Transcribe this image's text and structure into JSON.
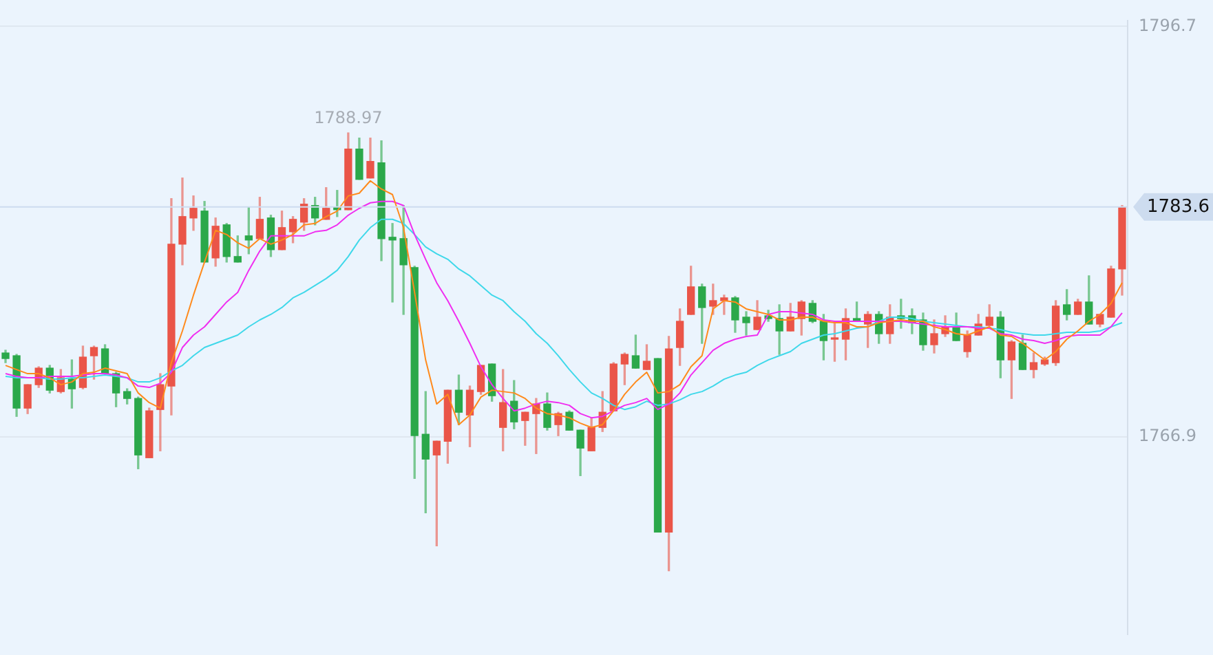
{
  "chart_data": {
    "type": "candlestick",
    "categories": [
      null,
      null,
      null,
      null,
      null,
      null,
      null,
      null,
      null,
      null,
      null,
      null,
      null,
      null,
      null,
      null,
      null,
      null,
      null,
      null,
      null,
      null,
      null,
      null,
      null,
      null,
      null,
      null,
      null,
      null,
      null,
      null,
      null,
      null,
      null,
      null,
      null,
      null,
      null,
      null,
      null,
      null,
      null,
      null,
      null,
      null,
      null,
      null,
      null,
      null,
      null,
      null,
      null,
      null,
      null,
      null,
      null,
      null,
      null,
      null,
      null,
      null,
      null,
      null,
      null,
      null,
      null,
      null,
      null,
      null,
      null,
      null,
      null,
      null,
      null,
      null,
      null,
      null,
      null,
      null,
      null,
      null,
      null,
      null,
      null,
      null,
      null,
      null,
      null,
      null,
      null,
      null,
      null,
      null,
      null,
      null,
      null,
      null,
      null,
      null,
      null,
      null
    ],
    "ohlc": [
      [
        1773.0,
        1773.2,
        1772.3,
        1772.6
      ],
      [
        1772.8,
        1772.9,
        1768.4,
        1769.0
      ],
      [
        1769.0,
        1770.7,
        1768.6,
        1770.7
      ],
      [
        1770.7,
        1772.0,
        1770.5,
        1771.9
      ],
      [
        1771.9,
        1772.1,
        1770.1,
        1770.3
      ],
      [
        1770.2,
        1771.8,
        1770.1,
        1771.2
      ],
      [
        1771.1,
        1772.5,
        1769.0,
        1770.4
      ],
      [
        1770.5,
        1773.5,
        1770.4,
        1772.7
      ],
      [
        1772.8,
        1773.5,
        1771.1,
        1773.4
      ],
      [
        1773.3,
        1773.6,
        1771.5,
        1771.5
      ],
      [
        1771.5,
        1771.6,
        1769.1,
        1770.1
      ],
      [
        1770.2,
        1770.4,
        1769.3,
        1769.7
      ],
      [
        1769.7,
        1769.8,
        1764.6,
        1765.6
      ],
      [
        1765.4,
        1769.0,
        1765.4,
        1768.8
      ],
      [
        1768.9,
        1771.5,
        1765.9,
        1770.7
      ],
      [
        1770.6,
        1784.2,
        1768.5,
        1780.9
      ],
      [
        1780.9,
        1785.7,
        1779.4,
        1782.9
      ],
      [
        1782.8,
        1784.4,
        1781.9,
        1783.5
      ],
      [
        1783.3,
        1784.0,
        1779.6,
        1779.6
      ],
      [
        1779.9,
        1782.8,
        1779.3,
        1782.2
      ],
      [
        1782.3,
        1782.4,
        1779.6,
        1780.0
      ],
      [
        1780.0,
        1781.5,
        1779.6,
        1779.6
      ],
      [
        1781.5,
        1783.6,
        1780.2,
        1781.2
      ],
      [
        1781.3,
        1784.3,
        1781.3,
        1782.7
      ],
      [
        1782.8,
        1783.0,
        1780.0,
        1780.5
      ],
      [
        1780.5,
        1783.3,
        1780.5,
        1782.1
      ],
      [
        1781.8,
        1782.9,
        1781.0,
        1782.7
      ],
      [
        1782.5,
        1784.2,
        1781.9,
        1783.8
      ],
      [
        1783.7,
        1784.3,
        1782.3,
        1782.8
      ],
      [
        1782.7,
        1785.0,
        1782.7,
        1783.5
      ],
      [
        1783.6,
        1784.8,
        1782.9,
        1783.4
      ],
      [
        1783.4,
        1788.97,
        1783.4,
        1787.8
      ],
      [
        1787.8,
        1788.6,
        1785.6,
        1785.6
      ],
      [
        1785.7,
        1788.6,
        1785.7,
        1786.9
      ],
      [
        1786.8,
        1788.4,
        1779.7,
        1781.3
      ],
      [
        1781.4,
        1782.4,
        1776.7,
        1781.2
      ],
      [
        1781.3,
        1783.7,
        1775.8,
        1779.4
      ],
      [
        1779.2,
        1779.3,
        1763.9,
        1767.0
      ],
      [
        1767.1,
        1770.2,
        1761.4,
        1765.3
      ],
      [
        1765.6,
        1766.6,
        1759.0,
        1766.6
      ],
      [
        1766.6,
        1770.3,
        1765.0,
        1770.3
      ],
      [
        1770.3,
        1771.4,
        1767.8,
        1768.7
      ],
      [
        1768.5,
        1770.6,
        1766.2,
        1770.3
      ],
      [
        1770.2,
        1772.1,
        1770.0,
        1772.1
      ],
      [
        1772.2,
        1772.2,
        1769.5,
        1769.9
      ],
      [
        1767.6,
        1771.8,
        1765.9,
        1769.4
      ],
      [
        1769.5,
        1771.0,
        1767.5,
        1768.0
      ],
      [
        1768.1,
        1768.7,
        1766.3,
        1768.7
      ],
      [
        1768.6,
        1769.7,
        1765.7,
        1769.3
      ],
      [
        1769.3,
        1770.1,
        1767.4,
        1767.6
      ],
      [
        1767.8,
        1768.7,
        1767.0,
        1768.6
      ],
      [
        1768.7,
        1768.8,
        1767.4,
        1767.4
      ],
      [
        1767.4,
        1767.4,
        1764.1,
        1766.1
      ],
      [
        1765.9,
        1768.3,
        1765.9,
        1767.6
      ],
      [
        1767.6,
        1770.2,
        1767.3,
        1768.7
      ],
      [
        1768.8,
        1772.3,
        1768.8,
        1772.2
      ],
      [
        1772.2,
        1773.0,
        1770.7,
        1772.9
      ],
      [
        1772.8,
        1774.3,
        1771.9,
        1771.9
      ],
      [
        1771.8,
        1773.6,
        1771.8,
        1772.4
      ],
      [
        1772.6,
        1772.6,
        1760.0,
        1760.0
      ],
      [
        1760.0,
        1774.2,
        1757.2,
        1773.3
      ],
      [
        1773.4,
        1776.2,
        1772.1,
        1775.3
      ],
      [
        1775.8,
        1779.3,
        1775.8,
        1777.8
      ],
      [
        1777.8,
        1778.0,
        1773.7,
        1776.3
      ],
      [
        1776.4,
        1778.0,
        1775.8,
        1776.8
      ],
      [
        1776.8,
        1777.2,
        1775.8,
        1777.0
      ],
      [
        1777.0,
        1777.1,
        1774.5,
        1775.4
      ],
      [
        1775.6,
        1776.0,
        1774.3,
        1775.2
      ],
      [
        1774.7,
        1776.8,
        1774.7,
        1775.6
      ],
      [
        1775.7,
        1776.1,
        1775.3,
        1775.5
      ],
      [
        1775.5,
        1776.5,
        1772.9,
        1774.6
      ],
      [
        1774.6,
        1776.6,
        1774.6,
        1775.6
      ],
      [
        1775.5,
        1776.8,
        1774.3,
        1776.7
      ],
      [
        1776.6,
        1776.8,
        1775.2,
        1775.3
      ],
      [
        1775.3,
        1775.8,
        1772.5,
        1773.9
      ],
      [
        1774.0,
        1775.3,
        1772.4,
        1774.1
      ],
      [
        1774.0,
        1776.2,
        1772.5,
        1775.5
      ],
      [
        1775.5,
        1776.7,
        1775.3,
        1775.3
      ],
      [
        1775.1,
        1776.0,
        1773.4,
        1775.8
      ],
      [
        1775.8,
        1776.0,
        1773.7,
        1774.4
      ],
      [
        1774.4,
        1776.5,
        1773.7,
        1775.6
      ],
      [
        1775.7,
        1776.9,
        1774.8,
        1775.5
      ],
      [
        1775.7,
        1776.2,
        1774.4,
        1775.2
      ],
      [
        1775.4,
        1775.9,
        1773.2,
        1773.6
      ],
      [
        1773.6,
        1775.4,
        1773.0,
        1774.4
      ],
      [
        1774.4,
        1775.7,
        1774.2,
        1774.9
      ],
      [
        1774.9,
        1775.9,
        1773.9,
        1773.9
      ],
      [
        1773.1,
        1774.6,
        1772.7,
        1774.3
      ],
      [
        1774.3,
        1775.8,
        1774.3,
        1775.1
      ],
      [
        1775.0,
        1776.5,
        1775.0,
        1775.6
      ],
      [
        1775.6,
        1776.0,
        1771.2,
        1772.5
      ],
      [
        1772.5,
        1773.9,
        1769.7,
        1773.8
      ],
      [
        1773.7,
        1774.3,
        1771.8,
        1771.8
      ],
      [
        1771.8,
        1773.0,
        1771.2,
        1772.3
      ],
      [
        1772.2,
        1772.7,
        1772.1,
        1772.5
      ],
      [
        1772.3,
        1776.8,
        1772.1,
        1776.4
      ],
      [
        1776.5,
        1777.6,
        1775.4,
        1775.8
      ],
      [
        1775.8,
        1776.9,
        1775.8,
        1776.7
      ],
      [
        1776.7,
        1778.6,
        1775.1,
        1775.1
      ],
      [
        1775.1,
        1775.8,
        1774.9,
        1775.8
      ],
      [
        1775.6,
        1779.3,
        1775.6,
        1779.1
      ],
      [
        1779.1,
        1783.7,
        1777.2,
        1783.6
      ]
    ],
    "colors": [
      "#2ba84a",
      "#2ba84a",
      "#ea5548",
      "#ea5548",
      "#2ba84a",
      "#ea5548",
      "#2ba84a",
      "#ea5548",
      "#ea5548",
      "#2ba84a",
      "#2ba84a",
      "#2ba84a",
      "#2ba84a",
      "#ea5548",
      "#ea5548",
      "#ea5548",
      "#ea5548",
      "#ea5548",
      "#2ba84a",
      "#ea5548",
      "#2ba84a",
      "#2ba84a",
      "#2ba84a",
      "#ea5548",
      "#2ba84a",
      "#ea5548",
      "#ea5548",
      "#ea5548",
      "#2ba84a",
      "#ea5548",
      "#2ba84a",
      "#ea5548",
      "#2ba84a",
      "#ea5548",
      "#2ba84a",
      "#2ba84a",
      "#2ba84a",
      "#2ba84a",
      "#2ba84a",
      "#ea5548",
      "#ea5548",
      "#2ba84a",
      "#ea5548",
      "#ea5548",
      "#2ba84a",
      "#ea5548",
      "#2ba84a",
      "#ea5548",
      "#ea5548",
      "#2ba84a",
      "#ea5548",
      "#2ba84a",
      "#2ba84a",
      "#ea5548",
      "#ea5548",
      "#ea5548",
      "#ea5548",
      "#2ba84a",
      "#ea5548",
      "#2ba84a",
      "#ea5548",
      "#ea5548",
      "#ea5548",
      "#2ba84a",
      "#ea5548",
      "#ea5548",
      "#2ba84a",
      "#2ba84a",
      "#ea5548",
      "#2ba84a",
      "#2ba84a",
      "#ea5548",
      "#ea5548",
      "#2ba84a",
      "#2ba84a",
      "#ea5548",
      "#ea5548",
      "#2ba84a",
      "#ea5548",
      "#2ba84a",
      "#ea5548",
      "#2ba84a",
      "#2ba84a",
      "#2ba84a",
      "#ea5548",
      "#ea5548",
      "#2ba84a",
      "#ea5548",
      "#ea5548",
      "#ea5548",
      "#2ba84a",
      "#ea5548",
      "#2ba84a",
      "#ea5548",
      "#ea5548",
      "#ea5548",
      "#2ba84a",
      "#ea5548",
      "#2ba84a",
      "#ea5548",
      "#ea5548",
      "#ea5548"
    ],
    "series": [
      {
        "type": "line",
        "color": "#ff8a1c",
        "values": [
          1772.1,
          1771.8,
          1771.5,
          1771.5,
          1771.2,
          1770.7,
          1770.9,
          1771.5,
          1771.6,
          1771.9,
          1771.7,
          1771.5,
          1770.1,
          1769.4,
          1769.0,
          1772.3,
          1774.6,
          1777.2,
          1779.6,
          1781.9,
          1781.6,
          1781.0,
          1780.6,
          1781.3,
          1780.9,
          1781.2,
          1781.6,
          1782.3,
          1782.4,
          1782.9,
          1783.3,
          1784.4,
          1784.6,
          1785.5,
          1784.9,
          1784.5,
          1782.1,
          1777.4,
          1772.5,
          1769.3,
          1770.0,
          1767.8,
          1768.5,
          1769.8,
          1770.3,
          1770.2,
          1770.1,
          1769.7,
          1769.0,
          1768.6,
          1768.5,
          1768.3,
          1767.9,
          1767.6,
          1767.8,
          1768.8,
          1770.0,
          1770.9,
          1771.6,
          1770.1,
          1770.2,
          1770.7,
          1772.0,
          1772.8,
          1776.2,
          1776.8,
          1776.7,
          1776.2,
          1776.0,
          1775.8,
          1775.4,
          1775.4,
          1775.6,
          1775.6,
          1775.3,
          1775.2,
          1775.2,
          1774.9,
          1774.9,
          1775.2,
          1775.3,
          1775.4,
          1775.3,
          1775.3,
          1774.9,
          1774.7,
          1774.4,
          1774.3,
          1774.6,
          1774.9,
          1774.3,
          1774.2,
          1773.7,
          1773.1,
          1772.5,
          1773.1,
          1774.0,
          1774.6,
          1775.3,
          1775.8,
          1776.6,
          1778.1
        ]
      },
      {
        "type": "line",
        "color": "#f02ef0",
        "values": [
          1771.5,
          1771.3,
          1771.2,
          1771.2,
          1771.3,
          1771.3,
          1771.3,
          1771.4,
          1771.5,
          1771.5,
          1771.4,
          1771.2,
          1770.6,
          1770.5,
          1770.8,
          1771.6,
          1773.4,
          1774.3,
          1774.9,
          1775.8,
          1776.7,
          1777.4,
          1779.0,
          1780.4,
          1781.5,
          1781.5,
          1781.5,
          1781.5,
          1781.8,
          1781.9,
          1782.3,
          1783.0,
          1783.5,
          1783.9,
          1784.0,
          1784.0,
          1783.7,
          1781.6,
          1779.8,
          1778.1,
          1776.8,
          1775.3,
          1773.7,
          1772.0,
          1770.7,
          1769.7,
          1768.8,
          1769.0,
          1769.3,
          1769.5,
          1769.4,
          1769.2,
          1768.6,
          1768.3,
          1768.4,
          1768.8,
          1769.2,
          1769.4,
          1769.7,
          1768.9,
          1769.3,
          1770.1,
          1771.4,
          1772.3,
          1773.2,
          1773.7,
          1774.0,
          1774.2,
          1774.3,
          1775.8,
          1776.0,
          1776.0,
          1775.9,
          1775.8,
          1775.4,
          1775.3,
          1775.3,
          1775.3,
          1775.3,
          1775.3,
          1775.3,
          1775.3,
          1775.2,
          1775.1,
          1775.0,
          1774.9,
          1774.9,
          1774.9,
          1774.8,
          1774.8,
          1774.4,
          1774.3,
          1774.0,
          1773.9,
          1773.7,
          1773.9,
          1774.2,
          1774.3,
          1774.3,
          1774.3,
          1774.9,
          1775.9
        ]
      },
      {
        "type": "line",
        "color": "#3fd8ea",
        "values": [
          1771.3,
          1771.2,
          1771.2,
          1771.2,
          1771.1,
          1771.1,
          1771.2,
          1771.2,
          1771.3,
          1771.4,
          1771.3,
          1771.2,
          1770.9,
          1770.9,
          1771.2,
          1771.7,
          1772.1,
          1772.8,
          1773.4,
          1773.7,
          1774.0,
          1774.3,
          1774.9,
          1775.4,
          1775.8,
          1776.3,
          1777.0,
          1777.4,
          1777.9,
          1778.4,
          1779.0,
          1780.0,
          1781.2,
          1782.1,
          1782.7,
          1782.7,
          1782.4,
          1781.6,
          1780.7,
          1780.2,
          1779.8,
          1779.1,
          1778.6,
          1777.9,
          1777.2,
          1776.8,
          1776.0,
          1775.3,
          1774.4,
          1773.7,
          1772.8,
          1771.8,
          1770.9,
          1770.1,
          1769.7,
          1769.2,
          1768.9,
          1769.1,
          1769.5,
          1769.2,
          1769.3,
          1769.6,
          1770.0,
          1770.2,
          1770.6,
          1771.1,
          1771.4,
          1771.6,
          1772.1,
          1772.5,
          1772.8,
          1773.1,
          1773.7,
          1774.0,
          1774.3,
          1774.4,
          1774.6,
          1774.8,
          1774.9,
          1775.3,
          1775.6,
          1775.6,
          1775.5,
          1775.3,
          1775.2,
          1775.1,
          1775.0,
          1774.9,
          1774.9,
          1774.8,
          1774.7,
          1774.5,
          1774.4,
          1774.3,
          1774.3,
          1774.4,
          1774.5,
          1774.5,
          1774.5,
          1774.6,
          1774.9,
          1775.2
        ]
      }
    ],
    "ylim": [
      1752.6,
      1797.1
    ],
    "yticks": [
      1766.9,
      1796.7
    ],
    "ref_lines": [
      {
        "axis": "y",
        "value": 1783.6,
        "label": "1783.6",
        "color": "#cddcef"
      }
    ],
    "annotations": [
      {
        "text": "1788.97",
        "y": 1788.97
      }
    ],
    "grid": "y",
    "legend": false
  }
}
